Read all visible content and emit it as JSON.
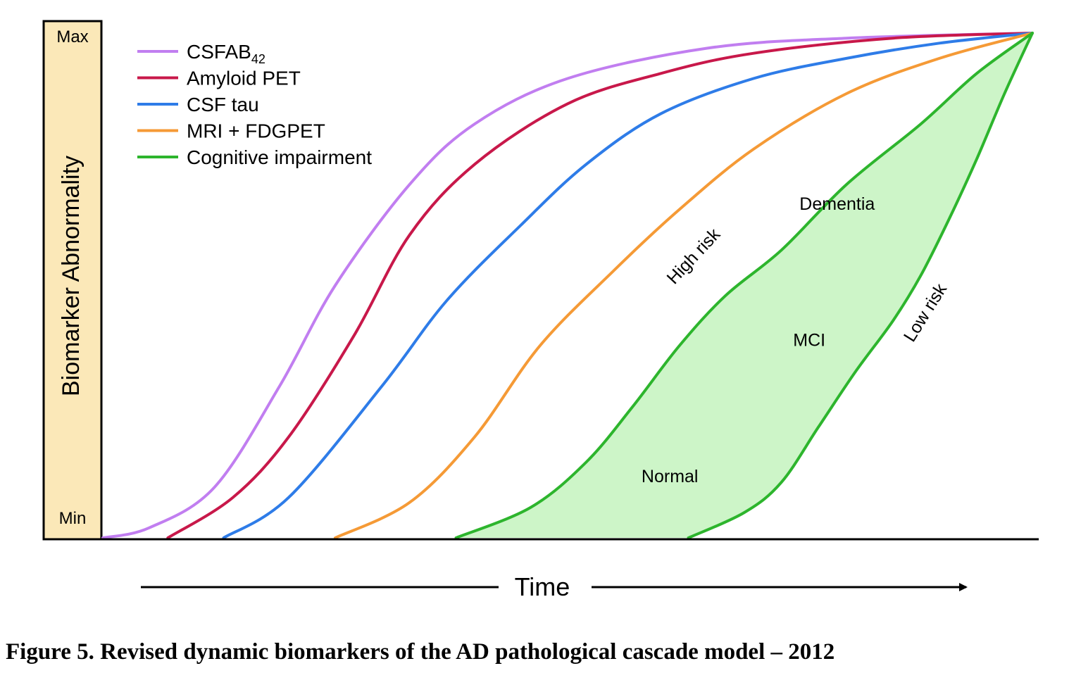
{
  "caption": "Figure 5. Revised dynamic biomarkers of the AD pathological cascade model – 2012",
  "chart_data": {
    "type": "line",
    "title": "",
    "ylabel": "Biomarker Abnormality",
    "xlabel": "Time",
    "y_ticks": {
      "max": "Max",
      "min": "Min"
    },
    "xlim": [
      0,
      100
    ],
    "ylim": [
      0,
      100
    ],
    "grid": false,
    "legend_position": "top-left",
    "series": [
      {
        "name": "CSFAB",
        "name_sub": "42",
        "color": "#c17ef0",
        "x": [
          0,
          5,
          12,
          19,
          25,
          33,
          40,
          50,
          65,
          80,
          100
        ],
        "y": [
          0,
          2,
          10,
          30,
          50,
          70,
          82,
          91,
          97,
          99,
          100
        ]
      },
      {
        "name": "Amyloid PET",
        "color": "#c8184a",
        "x": [
          7,
          14,
          20,
          27,
          33,
          40,
          50,
          60,
          70,
          85,
          100
        ],
        "y": [
          0,
          8,
          20,
          40,
          60,
          74,
          86,
          92,
          96,
          99,
          100
        ]
      },
      {
        "name": "CSF tau",
        "color": "#2e7ce8",
        "x": [
          13,
          20,
          30,
          37,
          45,
          52,
          60,
          70,
          80,
          90,
          100
        ],
        "y": [
          0,
          8,
          30,
          47,
          62,
          74,
          84,
          91,
          95,
          98,
          100
        ]
      },
      {
        "name": "MRI + FDGPET",
        "color": "#f59a36",
        "x": [
          25,
          33,
          40,
          47,
          55,
          62,
          70,
          80,
          90,
          100
        ],
        "y": [
          0,
          7,
          20,
          38,
          53,
          65,
          77,
          88,
          95,
          100
        ]
      },
      {
        "name": "Cognitive impairment",
        "color": "#2db52d",
        "band": {
          "high_risk": {
            "x": [
              38,
              46,
              52,
              57,
              62,
              67,
              73,
              80,
              88,
              94,
              100
            ],
            "y": [
              0,
              6,
              15,
              26,
              38,
              48,
              57,
              70,
              82,
              92,
              100
            ]
          },
          "low_risk": {
            "x": [
              63,
              69,
              73,
              77,
              81,
              85,
              88,
              91,
              94,
              97,
              100
            ],
            "y": [
              0,
              5,
              11,
              22,
              33,
              43,
              52,
              63,
              75,
              88,
              100
            ]
          },
          "fill": "#cdf5c8"
        }
      }
    ],
    "annotations": [
      {
        "text": "Dementia",
        "x": 79,
        "y": 65
      },
      {
        "text": "High risk",
        "x": 64,
        "y": 55
      },
      {
        "text": "MCI",
        "x": 76,
        "y": 38
      },
      {
        "text": "Low risk",
        "x": 89,
        "y": 44
      },
      {
        "text": "Normal",
        "x": 61,
        "y": 11
      }
    ]
  }
}
